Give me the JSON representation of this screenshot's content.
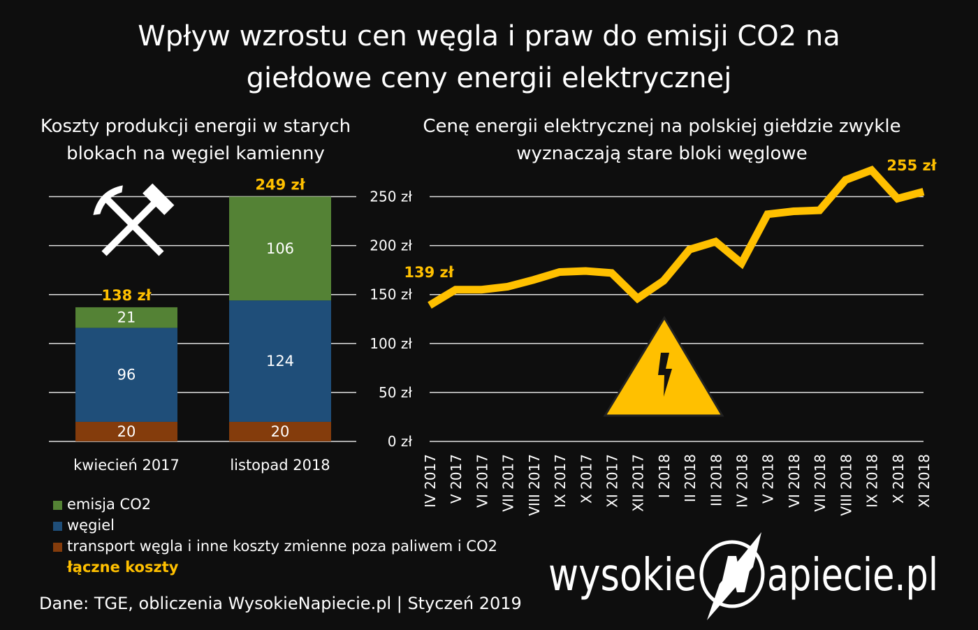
{
  "title_line1": "Wpływ wzrostu cen węgla i praw do emisji CO2 na",
  "title_line2": "giełdowe ceny energii elektrycznej",
  "colors": {
    "co2": "#548235",
    "coal": "#1f4e79",
    "transport": "#843c0c",
    "accent": "#ffc000",
    "background": "#0e0e0e"
  },
  "chart_data": [
    {
      "type": "bar",
      "stacked": true,
      "title_line1": "Koszty produkcji energii w starych",
      "title_line2": "blokach na węgiel kamienny",
      "categories": [
        "kwiecień 2017",
        "listopad 2018"
      ],
      "series": [
        {
          "name": "transport węgla i inne koszty zmienne poza paliwem i CO2",
          "values": [
            20,
            20
          ]
        },
        {
          "name": "węgiel",
          "values": [
            96,
            124
          ]
        },
        {
          "name": "emisja CO2",
          "values": [
            21,
            106
          ]
        }
      ],
      "totals": [
        "138 zł",
        "249 zł"
      ],
      "totals_legend": "łączne koszty",
      "ylim": [
        0,
        250
      ],
      "grid": true,
      "legend": "bottom",
      "icon": "hammer-and-pick-icon"
    },
    {
      "type": "line",
      "title_line1": "Cenę energii elektrycznej na polskiej giełdzie zwykle",
      "title_line2": "wyznaczają stare bloki węglowe",
      "x": [
        "IV 2017",
        "V 2017",
        "VI 2017",
        "VII 2017",
        "VIII 2017",
        "IX 2017",
        "X 2017",
        "XI 2017",
        "XII 2017",
        "I 2018",
        "II 2018",
        "III 2018",
        "IV 2018",
        "V 2018",
        "VI 2018",
        "VII 2018",
        "VIII 2018",
        "IX 2018",
        "X 2018",
        "XI 2018"
      ],
      "y": [
        139,
        155,
        155,
        158,
        165,
        173,
        174,
        172,
        146,
        164,
        196,
        204,
        182,
        232,
        235,
        236,
        267,
        277,
        248,
        255
      ],
      "yticks": [
        "0 zł",
        "50 zł",
        "100 zł",
        "150 zł",
        "200 zł",
        "250 zł"
      ],
      "ylim": [
        0,
        250
      ],
      "start_label": "139 zł",
      "end_label": "255 zł",
      "grid": true,
      "icon": "high-voltage-warning-icon"
    }
  ],
  "source": "Dane: TGE, obliczenia WysokieNapiecie.pl  |  Styczeń 2019",
  "logo": "wysokieNapiecie.pl"
}
